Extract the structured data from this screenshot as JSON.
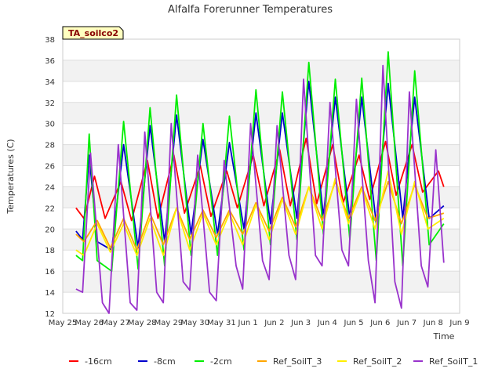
{
  "chart_data": {
    "type": "line",
    "title": "Alfalfa Forerunner Temperatures",
    "xlabel": "Time",
    "ylabel": "Temperatures (C)",
    "annotation": "TA_soilco2",
    "ylim": [
      12,
      38
    ],
    "y_ticks": [
      12,
      14,
      16,
      18,
      20,
      22,
      24,
      26,
      28,
      30,
      32,
      34,
      36,
      38
    ],
    "x_ticks": [
      "May 25",
      "May 26",
      "May 27",
      "May 28",
      "May 29",
      "May 30",
      "May 31",
      "Jun 1",
      "Jun 2",
      "Jun 3",
      "Jun 4",
      "Jun 5",
      "Jun 6",
      "Jun 7",
      "Jun 8",
      "Jun 9"
    ],
    "xlim_days": [
      0,
      15
    ],
    "grid": "horizontal bands",
    "legend_placement": "bottom",
    "series": [
      {
        "name": "-16cm",
        "color": "#ff0000",
        "x": [
          0.5,
          0.8,
          1.2,
          1.6,
          2.2,
          2.6,
          3.2,
          3.6,
          4.2,
          4.6,
          5.2,
          5.6,
          6.2,
          6.6,
          7.2,
          7.6,
          8.2,
          8.6,
          9.2,
          9.6,
          10.2,
          10.6,
          11.2,
          11.6,
          12.2,
          12.6,
          13.2,
          13.6,
          14.2,
          14.4
        ],
        "y": [
          22.0,
          21.0,
          25.0,
          21.0,
          24.5,
          20.8,
          26.5,
          21.0,
          27.0,
          21.5,
          26.0,
          21.2,
          25.5,
          22.0,
          27.0,
          22.2,
          27.5,
          22.2,
          28.6,
          22.4,
          28.0,
          22.5,
          27.0,
          22.8,
          28.3,
          23.2,
          28.0,
          23.5,
          25.5,
          24.0
        ]
      },
      {
        "name": "-8cm",
        "color": "#0000cc",
        "x": [
          0.5,
          0.75,
          1.0,
          1.3,
          1.85,
          2.3,
          2.85,
          3.3,
          3.85,
          4.3,
          4.85,
          5.3,
          5.85,
          6.3,
          6.85,
          7.3,
          7.85,
          8.3,
          8.85,
          9.3,
          9.85,
          10.3,
          10.85,
          11.3,
          11.85,
          12.3,
          12.85,
          13.3,
          13.85,
          14.4
        ],
        "y": [
          19.8,
          19.0,
          27.0,
          18.8,
          18.0,
          28.0,
          18.2,
          29.8,
          18.8,
          30.8,
          19.5,
          28.5,
          19.5,
          28.2,
          20.0,
          31.0,
          20.5,
          31.0,
          21.0,
          34.0,
          21.2,
          32.5,
          21.0,
          32.5,
          20.5,
          33.8,
          21.0,
          32.5,
          21.0,
          22.2
        ]
      },
      {
        "name": "-2cm",
        "color": "#00ee00",
        "x": [
          0.5,
          0.75,
          1.0,
          1.3,
          1.85,
          2.3,
          2.85,
          3.3,
          3.85,
          4.3,
          4.85,
          5.3,
          5.85,
          6.3,
          6.85,
          7.3,
          7.85,
          8.3,
          8.85,
          9.3,
          9.85,
          10.3,
          10.85,
          11.3,
          11.85,
          12.3,
          12.85,
          13.3,
          13.85,
          14.4
        ],
        "y": [
          17.5,
          17.0,
          29.0,
          17.0,
          16.0,
          30.2,
          16.2,
          31.5,
          16.5,
          32.7,
          17.5,
          30.0,
          17.5,
          30.7,
          18.0,
          33.2,
          18.5,
          33.0,
          19.0,
          35.8,
          19.5,
          34.2,
          19.0,
          34.3,
          17.0,
          36.8,
          16.5,
          35.0,
          18.5,
          20.5
        ]
      },
      {
        "name": "Ref_SoilT_3",
        "color": "#ffa500",
        "x": [
          0.5,
          0.8,
          1.3,
          1.8,
          2.3,
          2.8,
          3.3,
          3.8,
          4.3,
          4.8,
          5.3,
          5.8,
          6.3,
          6.8,
          7.3,
          7.8,
          8.3,
          8.8,
          9.3,
          9.8,
          10.3,
          10.8,
          11.3,
          11.8,
          12.3,
          12.8,
          13.3,
          13.8,
          14.4
        ],
        "y": [
          19.5,
          18.8,
          20.8,
          18.2,
          21.0,
          18.0,
          21.5,
          18.5,
          22.0,
          19.0,
          21.8,
          19.2,
          21.8,
          19.5,
          22.5,
          19.8,
          23.0,
          20.2,
          24.0,
          20.8,
          24.5,
          21.0,
          24.0,
          20.8,
          24.5,
          20.5,
          24.2,
          21.0,
          21.5
        ]
      },
      {
        "name": "Ref_SoilT_2",
        "color": "#ffee00",
        "x": [
          0.5,
          0.8,
          1.3,
          1.8,
          2.3,
          2.8,
          3.3,
          3.8,
          4.3,
          4.8,
          5.3,
          5.8,
          6.3,
          6.8,
          7.3,
          7.8,
          8.3,
          8.8,
          9.3,
          9.8,
          10.3,
          10.8,
          11.3,
          11.8,
          12.3,
          12.8,
          13.3,
          13.8,
          14.4
        ],
        "y": [
          18.0,
          17.5,
          20.5,
          17.8,
          20.5,
          17.5,
          21.0,
          17.5,
          22.0,
          18.0,
          21.5,
          18.5,
          21.5,
          18.5,
          22.3,
          19.0,
          22.8,
          19.5,
          24.0,
          20.0,
          24.8,
          20.5,
          23.8,
          20.0,
          25.5,
          19.5,
          24.5,
          20.0,
          21.0
        ]
      },
      {
        "name": "Ref_SoilT_1",
        "color": "#9933cc",
        "x": [
          0.5,
          0.75,
          1.05,
          1.5,
          1.75,
          2.1,
          2.55,
          2.8,
          3.1,
          3.55,
          3.8,
          4.1,
          4.55,
          4.8,
          5.1,
          5.55,
          5.8,
          6.1,
          6.55,
          6.8,
          7.1,
          7.55,
          7.8,
          8.1,
          8.55,
          8.8,
          9.1,
          9.55,
          9.8,
          10.1,
          10.55,
          10.8,
          11.1,
          11.55,
          11.8,
          12.1,
          12.55,
          12.8,
          13.1,
          13.55,
          13.8,
          14.1,
          14.4
        ],
        "y": [
          14.3,
          14.0,
          27.2,
          13.0,
          12.0,
          28.0,
          13.0,
          12.3,
          29.2,
          14.0,
          13.0,
          30.0,
          15.0,
          14.2,
          27.0,
          14.0,
          13.2,
          26.5,
          16.5,
          14.3,
          30.0,
          17.0,
          15.2,
          29.8,
          17.5,
          15.2,
          34.2,
          17.5,
          16.5,
          32.0,
          18.0,
          16.5,
          32.3,
          17.0,
          13.0,
          35.5,
          15.0,
          12.5,
          33.0,
          16.5,
          14.5,
          27.5,
          16.8
        ]
      }
    ]
  }
}
